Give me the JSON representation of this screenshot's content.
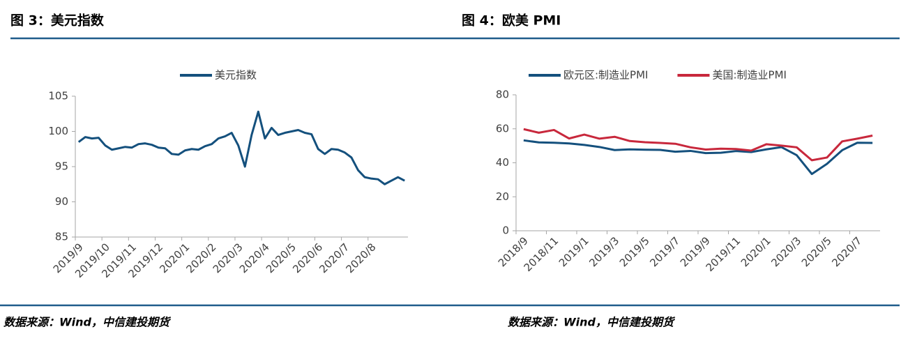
{
  "chart_data": [
    {
      "type": "line",
      "title": "图 3：美元指数",
      "source": "数据来源：Wind，中信建投期货",
      "categories": [
        "2019/9",
        null,
        null,
        null,
        "2019/10",
        null,
        null,
        null,
        "2019/11",
        null,
        null,
        null,
        "2019/12",
        null,
        null,
        null,
        "2020/1",
        null,
        null,
        null,
        "2020/2",
        null,
        null,
        null,
        "2020/3",
        null,
        null,
        null,
        "2020/4",
        null,
        null,
        null,
        "2020/5",
        null,
        null,
        null,
        "2020/6",
        null,
        null,
        null,
        "2020/7",
        null,
        null,
        null,
        "2020/8",
        null,
        null,
        null,
        null,
        null
      ],
      "series": [
        {
          "name": "美元指数",
          "color": "#14507d",
          "values": [
            98.5,
            99.2,
            99.0,
            99.1,
            98.0,
            97.4,
            97.6,
            97.8,
            97.7,
            98.2,
            98.3,
            98.1,
            97.7,
            97.6,
            96.8,
            96.7,
            97.3,
            97.5,
            97.4,
            97.9,
            98.2,
            99.0,
            99.3,
            99.8,
            98.0,
            95.0,
            99.5,
            102.8,
            99.0,
            100.5,
            99.5,
            99.8,
            100.0,
            100.2,
            99.8,
            99.6,
            97.5,
            96.8,
            97.5,
            97.4,
            97.0,
            96.3,
            94.5,
            93.5,
            93.3,
            93.2,
            92.5,
            93.0,
            93.5,
            93.0
          ]
        }
      ],
      "ylim": [
        85,
        105
      ],
      "yticks": [
        85,
        90,
        95,
        100,
        105
      ]
    },
    {
      "type": "line",
      "title": "图 4：欧美 PMI",
      "source": "数据来源：Wind，中信建投期货",
      "categories": [
        "2018/9",
        null,
        "2018/11",
        null,
        "2019/1",
        null,
        "2019/3",
        null,
        "2019/5",
        null,
        "2019/7",
        null,
        "2019/9",
        null,
        "2019/11",
        null,
        "2020/1",
        null,
        "2020/3",
        null,
        "2020/5",
        null,
        "2020/7",
        null
      ],
      "series": [
        {
          "name": "欧元区:制造业PMI",
          "color": "#14507d",
          "values": [
            53.2,
            52.0,
            51.8,
            51.4,
            50.5,
            49.3,
            47.5,
            47.9,
            47.7,
            47.6,
            46.5,
            47.0,
            45.7,
            45.9,
            46.9,
            46.3,
            47.9,
            49.2,
            44.5,
            33.4,
            39.4,
            47.4,
            51.8,
            51.7
          ]
        },
        {
          "name": "美国:制造业PMI",
          "color": "#c8283c",
          "values": [
            59.8,
            57.7,
            59.3,
            54.3,
            56.6,
            54.2,
            55.3,
            52.8,
            52.1,
            51.7,
            51.2,
            49.1,
            47.8,
            48.3,
            48.1,
            47.2,
            50.9,
            50.1,
            49.1,
            41.5,
            43.1,
            52.6,
            54.2,
            56.0
          ]
        }
      ],
      "ylim": [
        0,
        80
      ],
      "yticks": [
        0,
        20,
        40,
        60,
        80
      ]
    }
  ]
}
